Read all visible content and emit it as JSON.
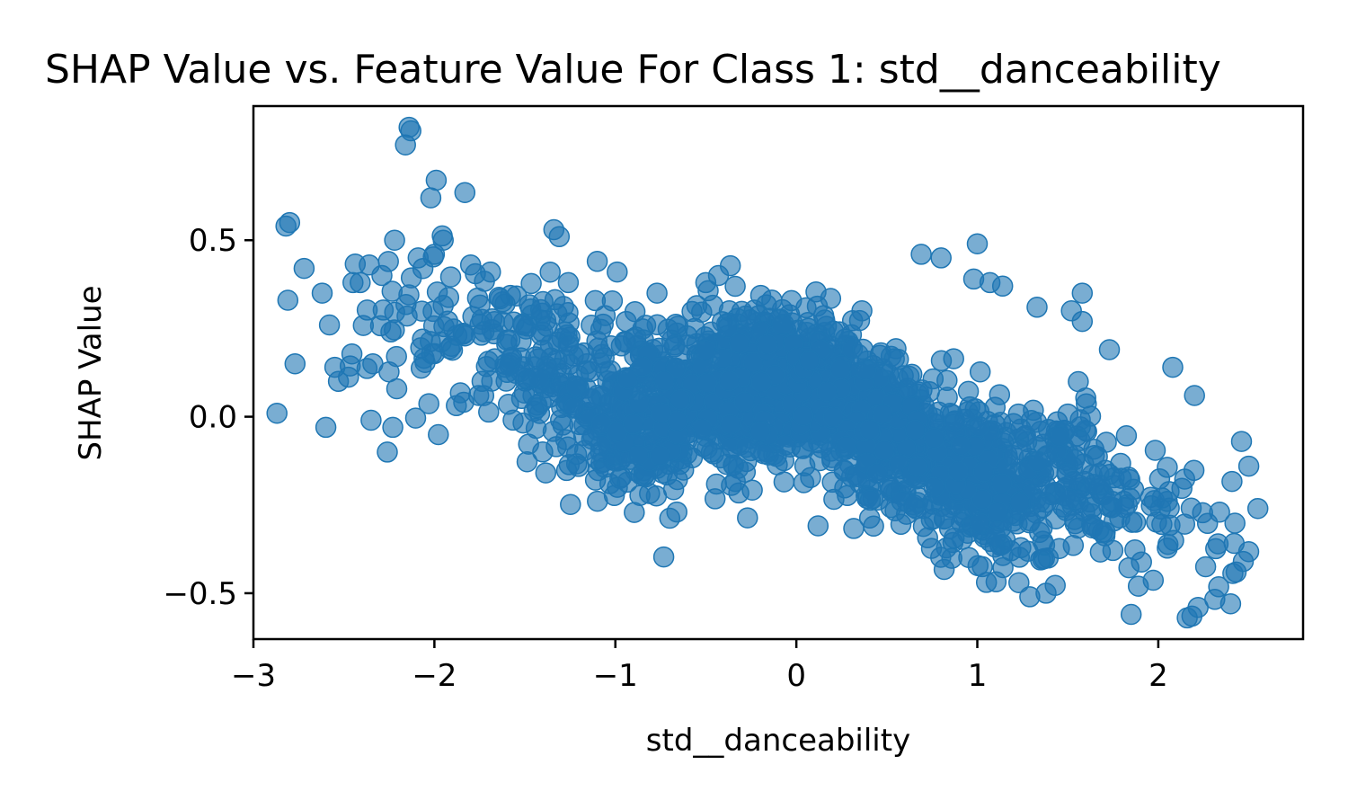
{
  "chart_data": {
    "type": "scatter",
    "title": "SHAP Value vs. Feature Value For Class 1: std__danceability",
    "xlabel": "std__danceability",
    "ylabel": "SHAP Value",
    "xlim": [
      -3.0,
      2.8
    ],
    "ylim": [
      -0.63,
      0.88
    ],
    "x_ticks": [
      -3,
      -2,
      -1,
      0,
      1,
      2
    ],
    "x_tick_labels": [
      "−3",
      "−2",
      "−1",
      "0",
      "1",
      "2"
    ],
    "y_ticks": [
      -0.5,
      0.0,
      0.5
    ],
    "y_tick_labels": [
      "−0.5",
      "0.0",
      "0.5"
    ],
    "grid": false,
    "legend": "none",
    "marker_color": "#1f77b4",
    "marker_alpha": 0.6,
    "trend": {
      "slope": -0.095,
      "intercept": 0.0,
      "noise_sd": 0.11,
      "n_generated": 2200
    },
    "points": [
      [
        -2.87,
        0.01
      ],
      [
        -2.82,
        0.54
      ],
      [
        -2.8,
        0.55
      ],
      [
        -2.81,
        0.33
      ],
      [
        -2.77,
        0.15
      ],
      [
        -2.72,
        0.42
      ],
      [
        -2.62,
        0.35
      ],
      [
        -2.6,
        -0.03
      ],
      [
        -2.58,
        0.26
      ],
      [
        -2.55,
        0.14
      ],
      [
        -2.53,
        0.1
      ],
      [
        -2.45,
        0.38
      ],
      [
        -2.41,
        0.38
      ],
      [
        -2.36,
        0.43
      ],
      [
        -2.35,
        -0.01
      ],
      [
        -2.34,
        0.15
      ],
      [
        -2.29,
        0.4
      ],
      [
        -2.26,
        -0.1
      ],
      [
        -2.22,
        0.5
      ],
      [
        -2.24,
        0.24
      ],
      [
        -2.23,
        -0.03
      ],
      [
        -2.16,
        0.77
      ],
      [
        -2.14,
        0.82
      ],
      [
        -2.13,
        0.81
      ],
      [
        -2.09,
        0.45
      ],
      [
        -2.02,
        0.62
      ],
      [
        -2.0,
        0.46
      ],
      [
        -1.99,
        0.67
      ],
      [
        -1.8,
        0.43
      ],
      [
        -1.69,
        0.41
      ],
      [
        -1.34,
        0.53
      ],
      [
        -1.31,
        0.51
      ],
      [
        -1.26,
        0.38
      ],
      [
        -1.1,
        0.44
      ],
      [
        -0.99,
        0.41
      ],
      [
        -0.94,
        0.27
      ],
      [
        -0.77,
        0.35
      ],
      [
        -0.66,
        -0.27
      ],
      [
        -0.5,
        0.38
      ],
      [
        -0.43,
        0.4
      ],
      [
        -0.08,
        0.26
      ],
      [
        0.69,
        0.46
      ],
      [
        0.8,
        0.45
      ],
      [
        0.98,
        0.39
      ],
      [
        1.0,
        0.49
      ],
      [
        1.07,
        0.38
      ],
      [
        1.14,
        0.37
      ],
      [
        1.33,
        0.31
      ],
      [
        1.52,
        0.3
      ],
      [
        1.58,
        0.35
      ],
      [
        1.58,
        0.27
      ],
      [
        1.73,
        0.19
      ],
      [
        2.08,
        0.14
      ],
      [
        2.2,
        0.06
      ],
      [
        2.46,
        -0.07
      ],
      [
        2.5,
        -0.14
      ],
      [
        2.55,
        -0.26
      ],
      [
        2.43,
        -0.44
      ],
      [
        2.4,
        -0.53
      ],
      [
        2.33,
        -0.36
      ],
      [
        2.22,
        -0.54
      ],
      [
        2.16,
        -0.57
      ],
      [
        1.85,
        -0.56
      ],
      [
        1.29,
        -0.51
      ],
      [
        1.38,
        -0.5
      ],
      [
        1.23,
        -0.47
      ],
      [
        1.89,
        -0.48
      ],
      [
        1.1,
        -0.34
      ],
      [
        2.47,
        -0.41
      ],
      [
        0.65,
        -0.25
      ]
    ]
  }
}
